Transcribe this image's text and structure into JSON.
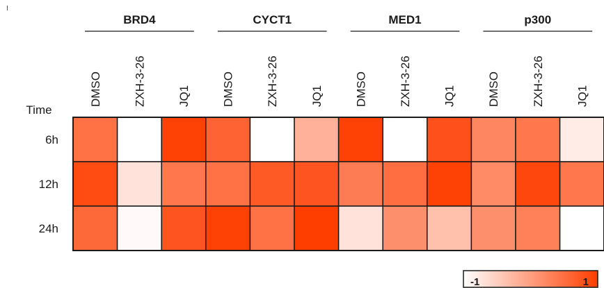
{
  "chart_data": {
    "type": "heatmap",
    "title": "",
    "row_axis_label": "Time",
    "groups": [
      {
        "name": "BRD4",
        "columns": [
          "DMSO",
          "ZXH-3-26",
          "JQ1"
        ]
      },
      {
        "name": "CYCT1",
        "columns": [
          "DMSO",
          "ZXH-3-26",
          "JQ1"
        ]
      },
      {
        "name": "MED1",
        "columns": [
          "DMSO",
          "ZXH-3-26",
          "JQ1"
        ]
      },
      {
        "name": "p300",
        "columns": [
          "DMSO",
          "ZXH-3-26",
          "JQ1"
        ]
      }
    ],
    "rows": [
      "6h",
      "12h",
      "24h"
    ],
    "values": [
      [
        0.45,
        -1.0,
        0.95,
        0.6,
        -1.0,
        -0.2,
        0.95,
        -1.0,
        0.8,
        0.25,
        0.4,
        -0.8
      ],
      [
        0.85,
        -0.7,
        0.4,
        0.45,
        0.7,
        0.75,
        0.35,
        0.5,
        0.95,
        0.2,
        0.9,
        0.4
      ],
      [
        0.55,
        -0.95,
        0.75,
        0.95,
        0.45,
        1.0,
        -0.7,
        0.15,
        -0.35,
        0.15,
        0.3,
        -1.0
      ]
    ],
    "colorbar": {
      "min": -1,
      "max": 1,
      "min_label": "-1",
      "max_label": "1",
      "low_color": "#ffffff",
      "high_color": "#fe3d00"
    },
    "grid": true
  }
}
